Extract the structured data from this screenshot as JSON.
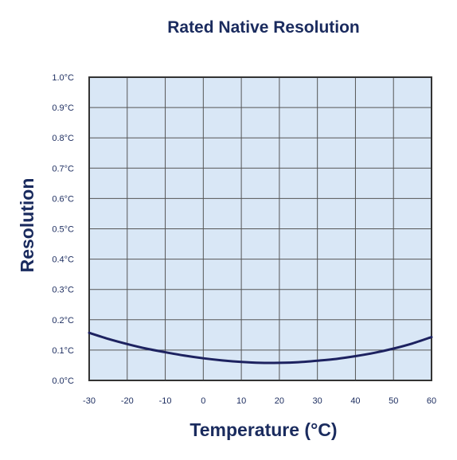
{
  "chart_data": {
    "type": "line",
    "title": "Rated Native Resolution",
    "xlabel": "Temperature (°C)",
    "ylabel": "Resolution",
    "x_ticks": [
      "-30",
      "-20",
      "-10",
      "0",
      "10",
      "20",
      "30",
      "40",
      "50",
      "60"
    ],
    "y_ticks": [
      "0.0°C",
      "0.1°C",
      "0.2°C",
      "0.3°C",
      "0.4°C",
      "0.5°C",
      "0.6°C",
      "0.7°C",
      "0.8°C",
      "0.9°C",
      "1.0°C"
    ],
    "xlim": [
      -30,
      60
    ],
    "ylim": [
      0,
      1.0
    ],
    "grid": true,
    "series": [
      {
        "x": [
          -30,
          -25,
          -20,
          -15,
          -10,
          -5,
          0,
          5,
          10,
          15,
          20,
          25,
          30,
          35,
          40,
          45,
          50,
          55,
          60
        ],
        "values": [
          0.157,
          0.137,
          0.12,
          0.105,
          0.093,
          0.082,
          0.073,
          0.066,
          0.061,
          0.058,
          0.058,
          0.06,
          0.065,
          0.071,
          0.08,
          0.091,
          0.105,
          0.122,
          0.143
        ]
      }
    ],
    "colors": {
      "text": "#1a2b5e",
      "plot_bg": "#d9e7f6",
      "grid": "#555555",
      "frame": "#333333",
      "line": "#1d2260"
    }
  }
}
